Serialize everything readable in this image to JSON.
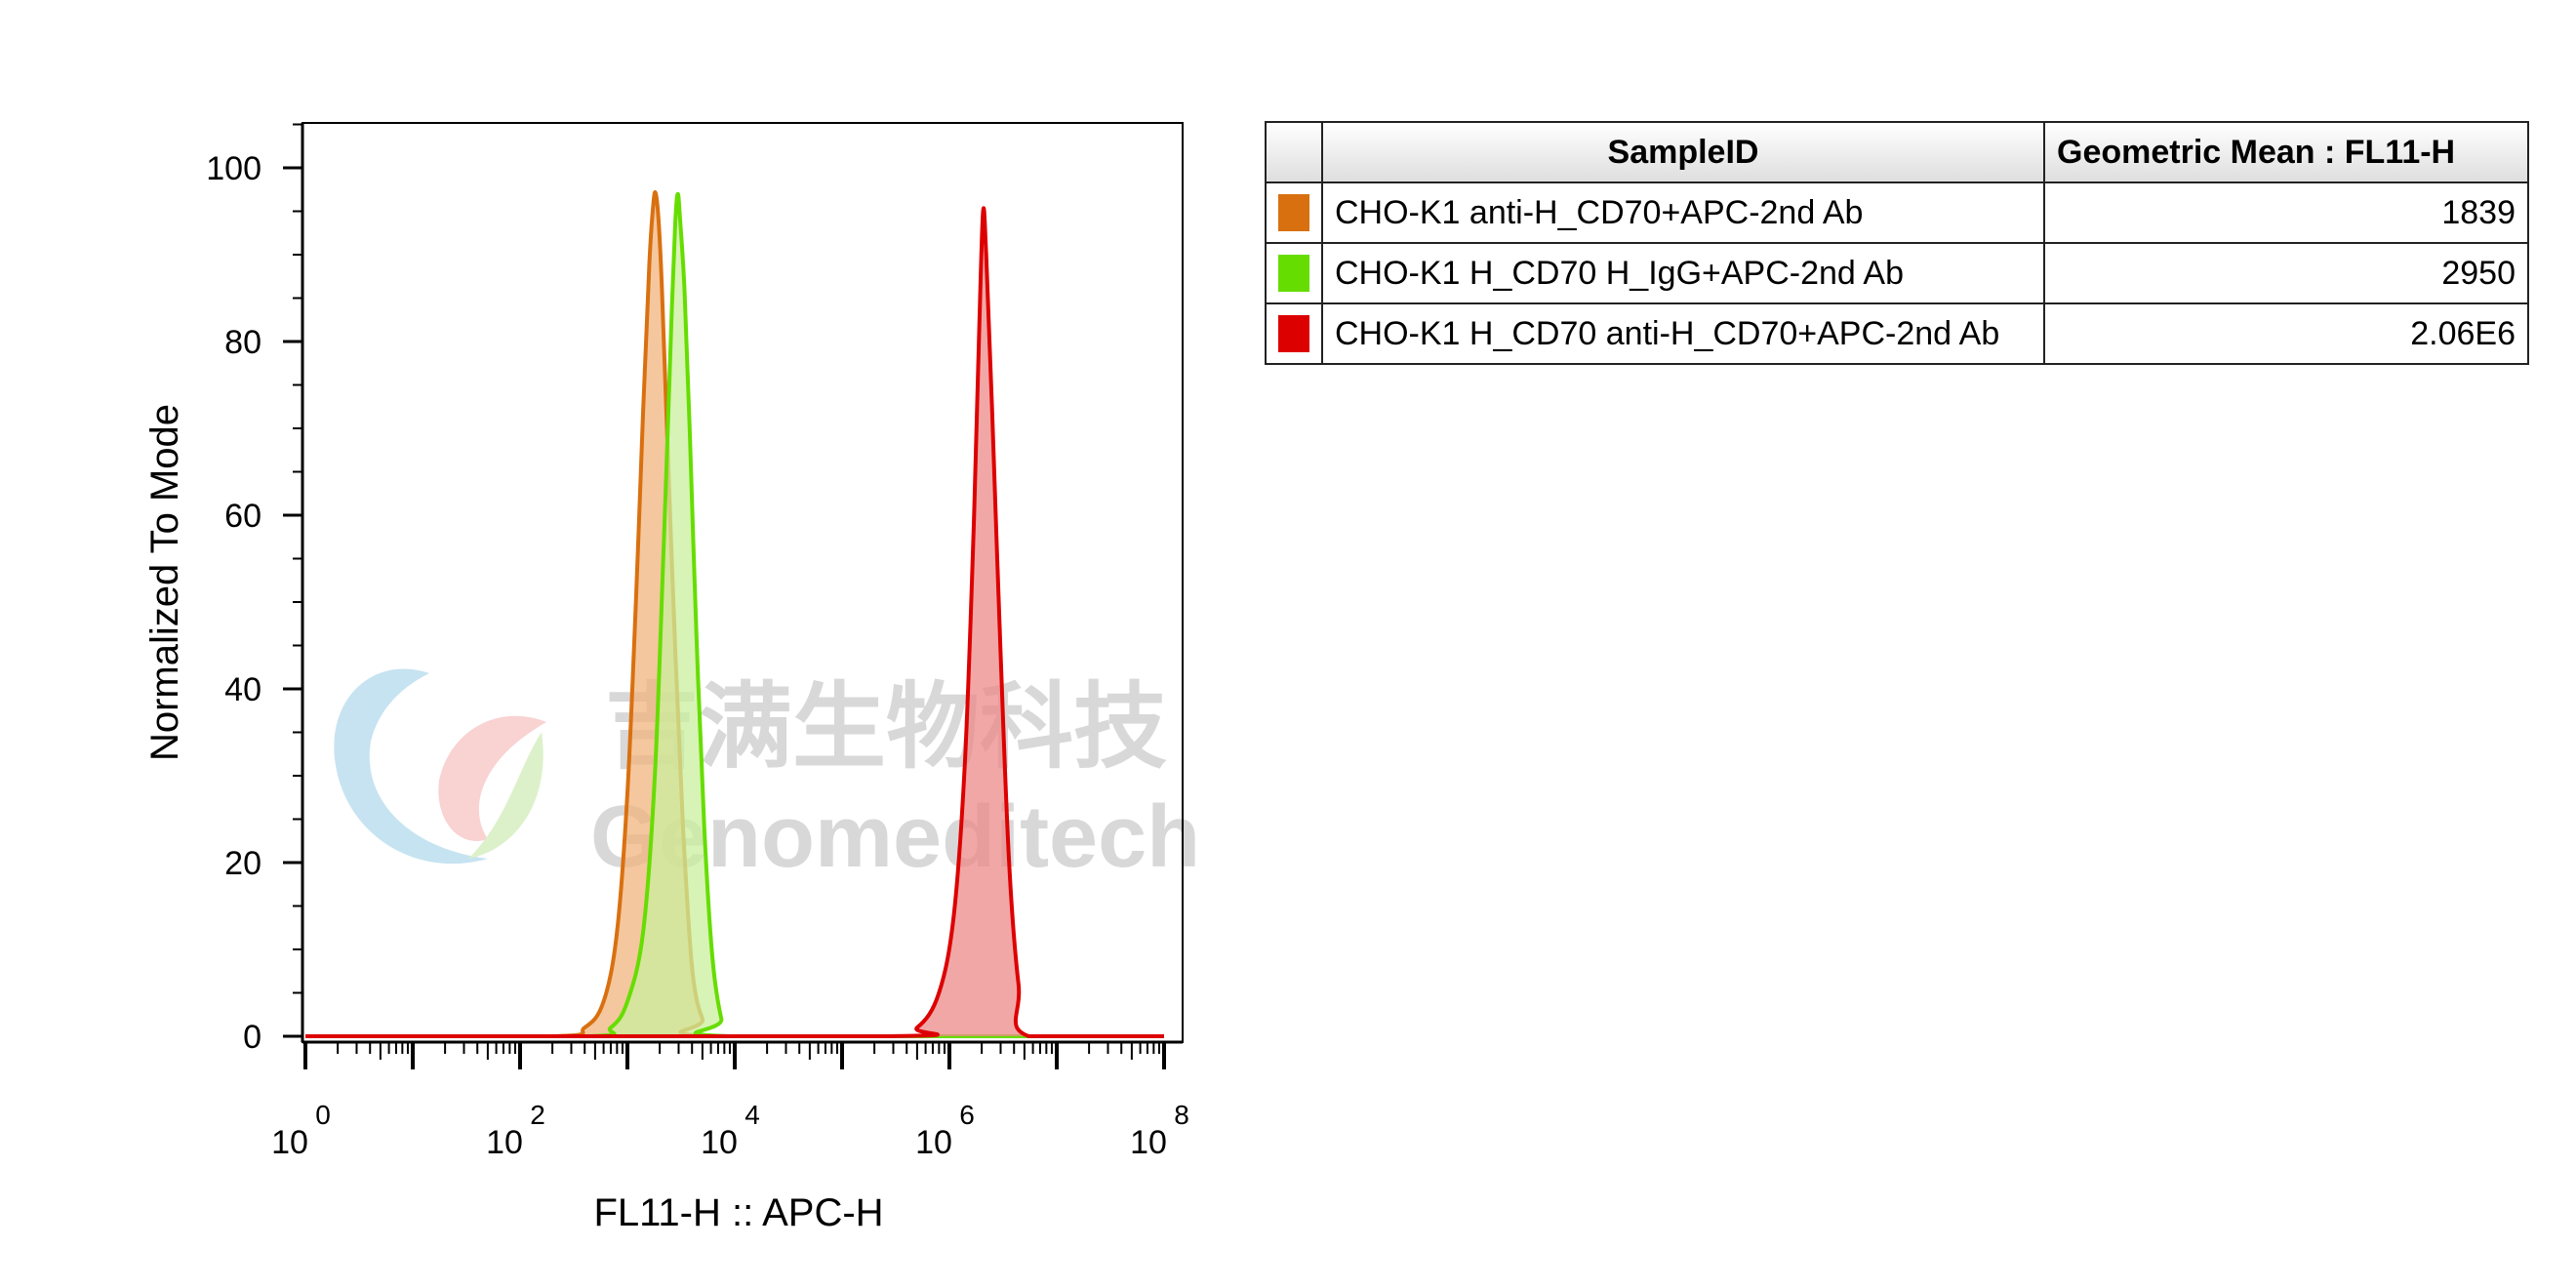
{
  "chart_data": {
    "type": "area",
    "xlabel": "FL11-H :: APC-H",
    "ylabel": "Normalized To Mode",
    "xscale": "log",
    "xlim": [
      1,
      100000000
    ],
    "ylim": [
      0,
      105
    ],
    "x_ticks": [
      {
        "base": "10",
        "exp": "0",
        "value": 1
      },
      {
        "base": "10",
        "exp": "2",
        "value": 100
      },
      {
        "base": "10",
        "exp": "4",
        "value": 10000
      },
      {
        "base": "10",
        "exp": "6",
        "value": 1000000
      },
      {
        "base": "10",
        "exp": "8",
        "value": 100000000
      }
    ],
    "y_ticks": [
      0,
      20,
      40,
      60,
      80,
      100
    ],
    "series": [
      {
        "name": "CHO-K1 anti-H_CD70+APC-2nd Ab",
        "color": "#d97010",
        "fill": "#f1b47e",
        "x": [
          1,
          200,
          400,
          600,
          800,
          1000,
          1200,
          1400,
          1600,
          1750,
          1839,
          1950,
          2100,
          2400,
          2800,
          3300,
          4000,
          5000,
          7000,
          100000000
        ],
        "y": [
          0,
          0,
          1,
          4,
          12,
          28,
          50,
          72,
          89,
          96,
          97,
          94,
          86,
          66,
          44,
          24,
          8,
          2,
          0,
          0
        ]
      },
      {
        "name": "CHO-K1 H_CD70 H_IgG+APC-2nd Ab",
        "color": "#66dd00",
        "fill": "#c9ef9c",
        "x": [
          1,
          400,
          700,
          1000,
          1400,
          1800,
          2200,
          2600,
          2800,
          2950,
          3100,
          3400,
          3800,
          4400,
          5200,
          6200,
          7500,
          9000,
          100000000
        ],
        "y": [
          0,
          0,
          1,
          4,
          12,
          30,
          58,
          84,
          94,
          97,
          94,
          86,
          70,
          46,
          24,
          9,
          2,
          0,
          0
        ]
      },
      {
        "name": "CHO-K1 H_CD70 anti-H_CD70+APC-2nd Ab",
        "color": "#dd0000",
        "fill": "#ee8a8a",
        "x": [
          1,
          250000,
          500000,
          800000,
          1100000,
          1400000,
          1700000,
          1900000,
          2060000,
          2200000,
          2500000,
          3000000,
          3600000,
          4400000,
          5500000,
          100000000
        ],
        "y": [
          0,
          0,
          1,
          5,
          14,
          32,
          60,
          82,
          95,
          90,
          72,
          44,
          20,
          6,
          0,
          0
        ]
      }
    ]
  },
  "watermark": {
    "chinese": "吉满生物科技",
    "english": "Genomeditech"
  },
  "stats_table": {
    "col_sample": "SampleID",
    "col_geomean": "Geometric Mean : FL11-H",
    "rows": [
      {
        "color": "#d97010",
        "sample": "CHO-K1 anti-H_CD70+APC-2nd Ab",
        "value": "1839"
      },
      {
        "color": "#66dd00",
        "sample": "CHO-K1 H_CD70 H_IgG+APC-2nd Ab",
        "value": "2950"
      },
      {
        "color": "#dd0000",
        "sample": "CHO-K1 H_CD70 anti-H_CD70+APC-2nd Ab",
        "value": "2.06E6"
      }
    ]
  }
}
